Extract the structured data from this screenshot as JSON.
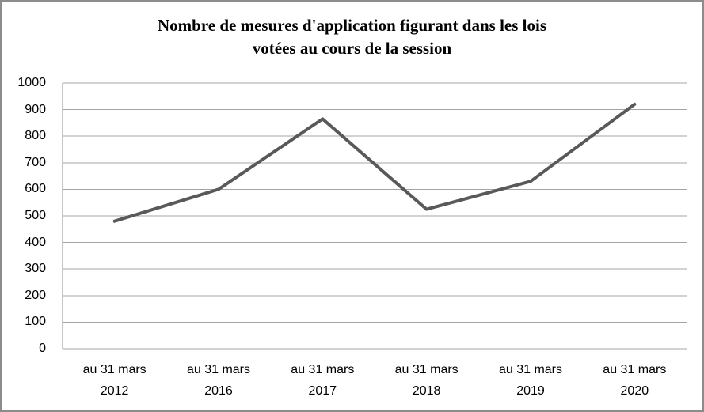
{
  "figure": {
    "background": "#ffffff",
    "border_color": "#8c8c8c"
  },
  "chart_data": {
    "type": "line",
    "title": "Nombre de mesures d'application figurant dans les lois votées au cours de la session",
    "title_lines": [
      "Nombre de mesures d'application figurant dans les lois",
      "votées au cours de la session"
    ],
    "categories": [
      [
        "au 31 mars",
        "2012"
      ],
      [
        "au 31 mars",
        "2016"
      ],
      [
        "au 31 mars",
        "2017"
      ],
      [
        "au 31 mars",
        "2018"
      ],
      [
        "au 31 mars",
        "2019"
      ],
      [
        "au 31 mars",
        "2020"
      ]
    ],
    "values": [
      480,
      600,
      865,
      525,
      630,
      920
    ],
    "ylim": [
      0,
      1000
    ],
    "yticks": [
      0,
      100,
      200,
      300,
      400,
      500,
      600,
      700,
      800,
      900,
      1000
    ],
    "xlabel": "",
    "ylabel": "",
    "grid": "horizontal",
    "legend": "none",
    "line_color": "#595959",
    "grid_color": "#a4a4a4",
    "axis_color": "#8c8c8c",
    "text_color": "#000000"
  }
}
